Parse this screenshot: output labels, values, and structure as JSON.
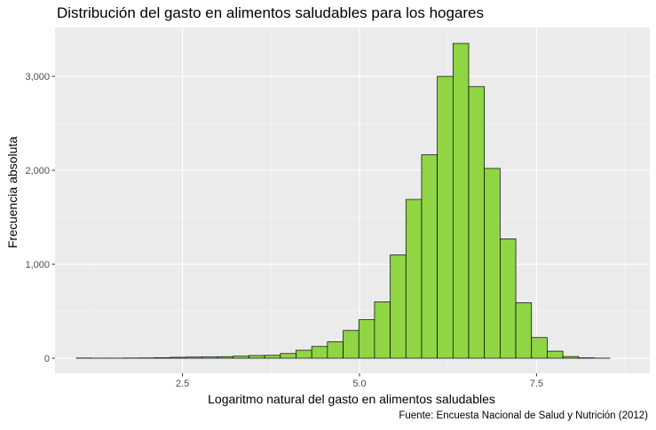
{
  "chart_data": {
    "type": "bar",
    "title": "Distribución del gasto en alimentos saludables para los hogares",
    "xlabel": "Logaritmo natural del gasto en alimentos saludables",
    "ylabel": "Frecuencia absoluta",
    "caption": "Fuente: Encuesta Nacional de Salud y Nutrición (2012)",
    "xlim": [
      0.7,
      9.1
    ],
    "ylim": [
      -160,
      3520
    ],
    "grid": true,
    "bin_width": 0.2217,
    "bin_start": 1.0,
    "bin_counts": [
      2,
      1,
      1,
      2,
      3,
      5,
      10,
      12,
      13,
      17,
      22,
      29,
      31,
      50,
      85,
      125,
      175,
      295,
      410,
      600,
      1100,
      1690,
      2165,
      3000,
      3350,
      2890,
      2020,
      1270,
      590,
      220,
      75,
      18,
      4,
      1
    ],
    "x_ticks": [
      {
        "value": 2.5,
        "label": "2.5"
      },
      {
        "value": 5.0,
        "label": "5.0"
      },
      {
        "value": 7.5,
        "label": "7.5"
      }
    ],
    "y_ticks": [
      {
        "value": 0,
        "label": "0"
      },
      {
        "value": 1000,
        "label": "1,000"
      },
      {
        "value": 2000,
        "label": "2,000"
      },
      {
        "value": 3000,
        "label": "3,000"
      }
    ],
    "colors": {
      "fill": "#8fd544",
      "stroke": "#000000",
      "panel": "#ebebeb",
      "grid_major": "#ffffff",
      "tick_text": "#4d4d4d"
    }
  }
}
